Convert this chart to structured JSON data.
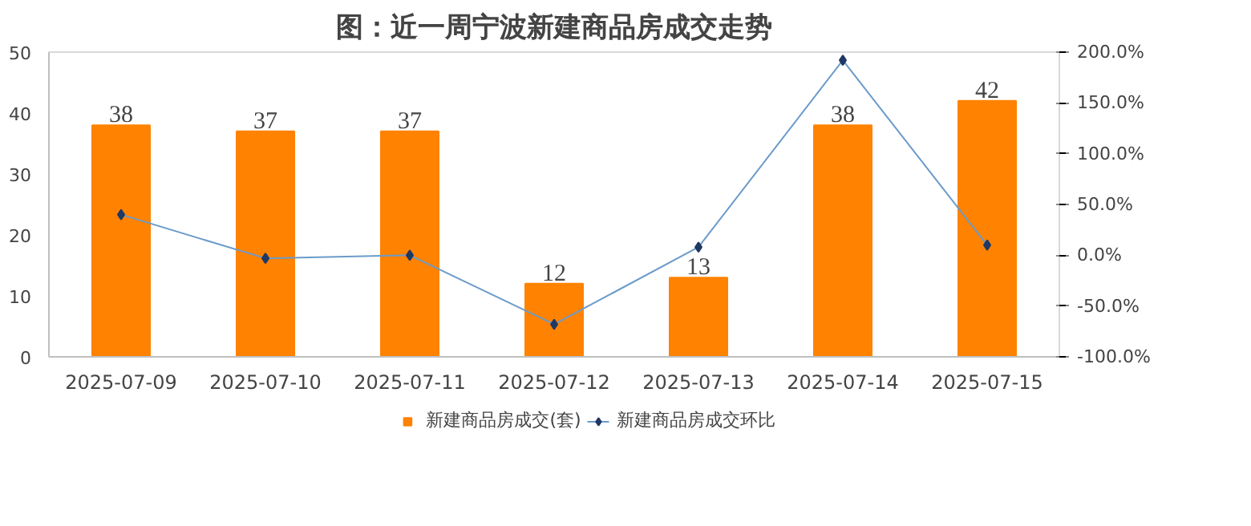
{
  "chart_data": {
    "type": "bar",
    "title": "图：近一周宁波新建商品房成交走势",
    "categories": [
      "2025-07-09",
      "2025-07-10",
      "2025-07-11",
      "2025-07-12",
      "2025-07-13",
      "2025-07-14",
      "2025-07-15"
    ],
    "series": [
      {
        "name": "新建商品房成交(套)",
        "color": "#ff8200",
        "values": [
          38,
          37,
          37,
          12,
          13,
          38,
          42
        ],
        "value_labels": [
          "38",
          "37",
          "37",
          "12",
          "13",
          "38",
          "42"
        ]
      },
      {
        "name": "新建商品房成交环比",
        "type": "line",
        "axis": "y2",
        "color": "#6b9bc9",
        "marker": "diamond",
        "values": [
          40,
          -3,
          0,
          -68,
          8,
          192,
          10
        ]
      }
    ],
    "ylim": [
      0,
      50
    ],
    "yticks": [
      0,
      10,
      20,
      30,
      40,
      50
    ],
    "y2lim": [
      -100,
      200
    ],
    "y2ticks": [
      {
        "value": -100,
        "label": "-100.0%"
      },
      {
        "value": -50,
        "label": "-50.0%"
      },
      {
        "value": 0,
        "label": "0.0%"
      },
      {
        "value": 50,
        "label": "50.0%"
      },
      {
        "value": 100,
        "label": "100.0%"
      },
      {
        "value": 150,
        "label": "150.0%"
      },
      {
        "value": 200,
        "label": "200.0%"
      }
    ],
    "grid": false,
    "legend": "bottom"
  }
}
